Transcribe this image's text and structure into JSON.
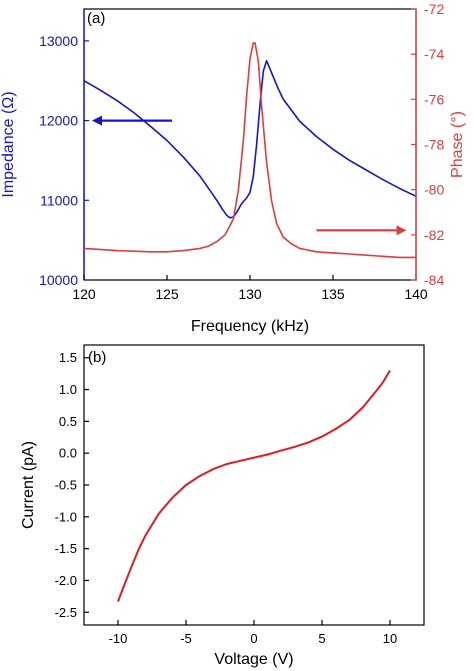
{
  "colors": {
    "impedance": "#1414d2",
    "phase": "#e03c3c",
    "current": "#e01c1c",
    "axis": "#000000"
  },
  "chart_data": [
    {
      "type": "line",
      "panel_label": "(a)",
      "xlabel": "Frequency (kHz)",
      "ylabel_left": "Impedance (Ω)",
      "ylabel_right": "Phase (°)",
      "xlim": [
        120,
        140
      ],
      "ylim_left": [
        10000,
        13400
      ],
      "ylim_right": [
        -84,
        -72
      ],
      "xticks": [
        120,
        125,
        130,
        135,
        140
      ],
      "yticks_left": [
        10000,
        11000,
        12000,
        13000
      ],
      "yticks_right": [
        -84,
        -82,
        -80,
        -78,
        -76,
        -74,
        -72
      ],
      "series": [
        {
          "axis": "left",
          "color": "#1414d2",
          "x": [
            120,
            121,
            122,
            123,
            124,
            125,
            126,
            127,
            127.5,
            128,
            128.3,
            128.6,
            128.8,
            129.0,
            129.2,
            129.5,
            129.8,
            130.0,
            130.2,
            130.4,
            130.6,
            130.8,
            131.0,
            131.3,
            131.7,
            132,
            133,
            134,
            135,
            136,
            137,
            138,
            139,
            140
          ],
          "values": [
            12500,
            12380,
            12250,
            12100,
            11930,
            11750,
            11540,
            11300,
            11150,
            11000,
            10900,
            10810,
            10780,
            10790,
            10850,
            10960,
            11030,
            11100,
            11300,
            11700,
            12200,
            12620,
            12750,
            12600,
            12400,
            12270,
            11990,
            11800,
            11640,
            11500,
            11380,
            11260,
            11150,
            11050
          ]
        },
        {
          "axis": "right",
          "color": "#e03c3c",
          "x": [
            120,
            122,
            124,
            125,
            126,
            127,
            127.5,
            128,
            128.5,
            129,
            129.3,
            129.6,
            129.8,
            130.0,
            130.2,
            130.3,
            130.5,
            130.7,
            131.0,
            131.3,
            131.6,
            132,
            132.5,
            133,
            134,
            135,
            136,
            137,
            138,
            139,
            140
          ],
          "values": [
            -82.6,
            -82.7,
            -82.75,
            -82.75,
            -82.7,
            -82.6,
            -82.5,
            -82.3,
            -82.0,
            -81.3,
            -80.0,
            -77.8,
            -75.8,
            -74.2,
            -73.5,
            -73.5,
            -74.3,
            -76.3,
            -78.8,
            -80.5,
            -81.5,
            -82.1,
            -82.4,
            -82.6,
            -82.75,
            -82.8,
            -82.85,
            -82.9,
            -82.95,
            -83.0,
            -83.0
          ]
        },
        {
          "axis": "left",
          "color": "#1414d2",
          "role": "arrow",
          "x": [
            125.3,
            120.6
          ],
          "values": [
            12000,
            12000
          ]
        },
        {
          "axis": "right",
          "color": "#e03c3c",
          "role": "arrow",
          "x": [
            134.0,
            139.3
          ],
          "values": [
            -81.8,
            -81.8
          ]
        }
      ]
    },
    {
      "type": "line",
      "panel_label": "(b)",
      "xlabel": "Voltage (V)",
      "ylabel": "Current (pA)",
      "xlim": [
        -12.5,
        12.5
      ],
      "ylim": [
        -2.7,
        1.7
      ],
      "xticks": [
        -10,
        -5,
        0,
        5,
        10
      ],
      "xtick_labels": [
        "-10",
        "-5",
        "0",
        "5",
        "10"
      ],
      "yticks": [
        -2.5,
        -2.0,
        -1.5,
        -1.0,
        -0.5,
        0.0,
        0.5,
        1.0,
        1.5
      ],
      "ytick_labels": [
        "-2.5",
        "-2.0",
        "-1.5",
        "-1.0",
        "-0.5",
        "0.0",
        "0.5",
        "1.0",
        "1.5"
      ],
      "series": [
        {
          "color": "#e01c1c",
          "x": [
            -10,
            -9.5,
            -9,
            -8.5,
            -8,
            -7,
            -6,
            -5,
            -4,
            -3,
            -2,
            -1,
            0,
            1,
            2,
            3,
            4,
            5,
            6,
            7,
            8,
            9,
            9.5,
            10
          ],
          "values": [
            -2.33,
            -2.05,
            -1.78,
            -1.52,
            -1.3,
            -0.95,
            -0.7,
            -0.5,
            -0.36,
            -0.25,
            -0.17,
            -0.12,
            -0.07,
            -0.02,
            0.04,
            0.1,
            0.17,
            0.26,
            0.38,
            0.52,
            0.72,
            0.98,
            1.12,
            1.3
          ]
        }
      ]
    }
  ]
}
